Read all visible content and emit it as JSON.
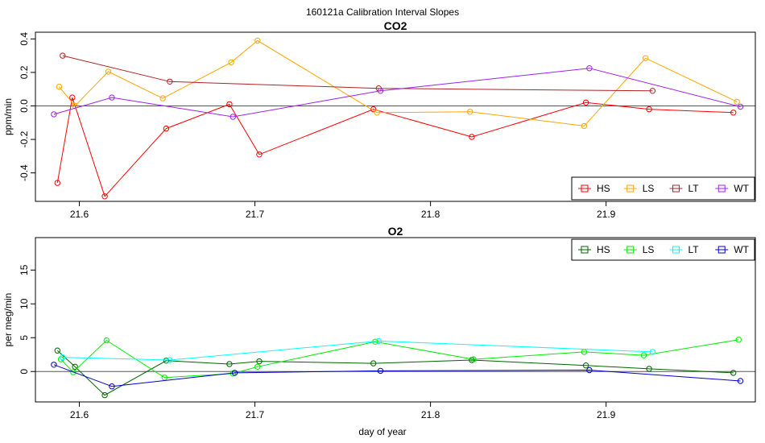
{
  "figure": {
    "title": "160121a   Calibration Interval Slopes",
    "xlabel": "day of year"
  },
  "chart_data": [
    {
      "type": "line",
      "title": "CO2",
      "ylabel": "ppm/min",
      "xlim": [
        21.575,
        21.985
      ],
      "ylim": [
        -0.57,
        0.44
      ],
      "xticks": [
        21.6,
        21.7,
        21.8,
        21.9
      ],
      "xtick_labels": [
        "21.6",
        "21.7",
        "21.8",
        "21.9"
      ],
      "yticks": [
        -0.4,
        -0.2,
        0.0,
        0.2,
        0.4
      ],
      "ytick_labels": [
        "-0.4",
        "-0.2",
        "0.0",
        "0.2",
        "0.4"
      ],
      "reference_line": 0,
      "legend_position": "bottom-right",
      "series": [
        {
          "name": "HS",
          "color": "#ff0000",
          "points": [
            [
              21.5875,
              -0.46
            ],
            [
              21.596,
              0.05
            ],
            [
              21.6145,
              -0.54
            ],
            [
              21.6495,
              -0.135
            ],
            [
              21.6855,
              0.01
            ],
            [
              21.7025,
              -0.29
            ],
            [
              21.7675,
              -0.02
            ],
            [
              21.8235,
              -0.185
            ],
            [
              21.8885,
              0.02
            ],
            [
              21.9245,
              -0.02
            ],
            [
              21.9725,
              -0.04
            ]
          ]
        },
        {
          "name": "LS",
          "color": "#ffa500",
          "points": [
            [
              21.5885,
              0.115
            ],
            [
              21.5975,
              0.0
            ],
            [
              21.6165,
              0.205
            ],
            [
              21.6475,
              0.045
            ],
            [
              21.6865,
              0.26
            ],
            [
              21.7015,
              0.39
            ],
            [
              21.7695,
              -0.04
            ],
            [
              21.8225,
              -0.035
            ],
            [
              21.8875,
              -0.12
            ],
            [
              21.9225,
              0.285
            ],
            [
              21.9745,
              0.025
            ]
          ]
        },
        {
          "name": "LT",
          "color": "#b22222",
          "points": [
            [
              21.5905,
              0.3
            ],
            [
              21.6515,
              0.145
            ],
            [
              21.7705,
              0.105
            ],
            [
              21.9265,
              0.09
            ]
          ]
        },
        {
          "name": "WT",
          "color": "#a020f0",
          "points": [
            [
              21.5855,
              -0.05
            ],
            [
              21.6185,
              0.05
            ],
            [
              21.6875,
              -0.065
            ],
            [
              21.7715,
              0.09
            ],
            [
              21.8905,
              0.225
            ],
            [
              21.9765,
              -0.005
            ]
          ]
        }
      ]
    },
    {
      "type": "line",
      "title": "O2",
      "ylabel": "per meg/min",
      "xlim": [
        21.575,
        21.985
      ],
      "ylim": [
        -4.5,
        19.8
      ],
      "xticks": [
        21.6,
        21.7,
        21.8,
        21.9
      ],
      "xtick_labels": [
        "21.6",
        "21.7",
        "21.8",
        "21.9"
      ],
      "yticks": [
        0,
        5,
        10,
        15
      ],
      "ytick_labels": [
        "0",
        "5",
        "10",
        "15"
      ],
      "reference_line": 0,
      "legend_position": "top-right",
      "series": [
        {
          "name": "HS",
          "color": "#006400",
          "points": [
            [
              21.5875,
              3.1
            ],
            [
              21.5975,
              0.7
            ],
            [
              21.6145,
              -3.5
            ],
            [
              21.6495,
              1.6
            ],
            [
              21.6855,
              1.1
            ],
            [
              21.7025,
              1.5
            ],
            [
              21.7675,
              1.2
            ],
            [
              21.8235,
              1.7
            ],
            [
              21.8885,
              0.9
            ],
            [
              21.9245,
              0.4
            ],
            [
              21.9725,
              -0.2
            ]
          ]
        },
        {
          "name": "LS",
          "color": "#00ee00",
          "points": [
            [
              21.5895,
              1.8
            ],
            [
              21.5965,
              -0.1
            ],
            [
              21.6155,
              4.6
            ],
            [
              21.6485,
              -0.9
            ],
            [
              21.6875,
              -0.3
            ],
            [
              21.7015,
              0.7
            ],
            [
              21.7685,
              4.4
            ],
            [
              21.8245,
              1.8
            ],
            [
              21.8875,
              2.9
            ],
            [
              21.9215,
              2.4
            ],
            [
              21.9755,
              4.7
            ]
          ]
        },
        {
          "name": "LT",
          "color": "#00ffff",
          "points": [
            [
              21.5905,
              2.1
            ],
            [
              21.6515,
              1.7
            ],
            [
              21.7705,
              4.5
            ],
            [
              21.9265,
              2.9
            ]
          ]
        },
        {
          "name": "WT",
          "color": "#0000cd",
          "points": [
            [
              21.5855,
              1.0
            ],
            [
              21.6185,
              -2.2
            ],
            [
              21.6885,
              -0.2
            ],
            [
              21.7715,
              0.1
            ],
            [
              21.8905,
              0.2
            ],
            [
              21.9765,
              -1.4
            ]
          ]
        }
      ]
    }
  ]
}
